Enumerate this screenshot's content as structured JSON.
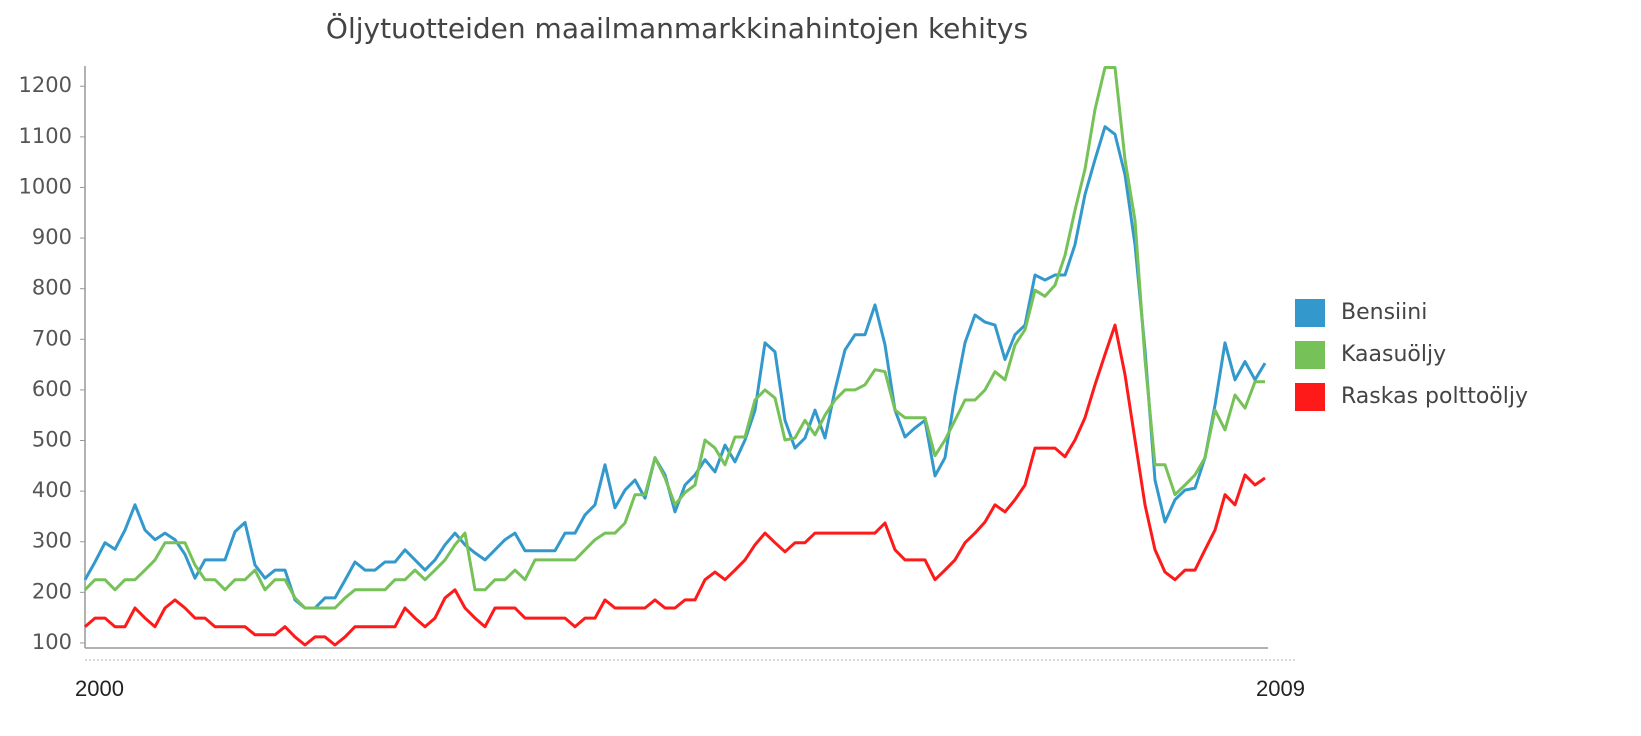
{
  "chart_data": {
    "type": "line",
    "title": "Öljytuotteiden maailmanmarkkinahintojen kehitys",
    "categories": [
      "2000",
      null,
      null,
      null,
      null,
      null,
      null,
      null,
      null,
      null,
      null,
      null,
      null,
      null,
      null,
      null,
      null,
      null,
      null,
      null,
      null,
      null,
      null,
      null,
      null,
      null,
      null,
      null,
      null,
      null,
      null,
      null,
      null,
      null,
      null,
      null,
      null,
      null,
      null,
      null,
      null,
      null,
      null,
      null,
      null,
      null,
      null,
      null,
      null,
      null,
      null,
      null,
      null,
      null,
      null,
      null,
      null,
      null,
      null,
      null,
      null,
      null,
      null,
      null,
      null,
      null,
      null,
      null,
      null,
      null,
      null,
      null,
      null,
      null,
      null,
      null,
      null,
      null,
      null,
      null,
      null,
      null,
      null,
      null,
      null,
      null,
      null,
      null,
      null,
      null,
      null,
      null,
      null,
      null,
      null,
      null,
      null,
      null,
      null,
      null,
      null,
      null,
      null,
      null,
      null,
      null,
      null,
      null,
      null,
      null,
      null,
      null,
      null,
      null,
      null,
      null,
      null,
      null,
      "2009"
    ],
    "series": [
      {
        "name": "Bensiini",
        "color": "#3399cc",
        "values": [
          225,
          260,
          298,
          285,
          323,
          373,
          323,
          304,
          317,
          304,
          275,
          228,
          264,
          264,
          264,
          320,
          338,
          254,
          228,
          244,
          244,
          185,
          169,
          169,
          189,
          189,
          224,
          260,
          244,
          244,
          260,
          260,
          284,
          264,
          244,
          264,
          294,
          317,
          294,
          278,
          264,
          284,
          304,
          317,
          282,
          282,
          282,
          282,
          317,
          317,
          353,
          373,
          452,
          367,
          402,
          422,
          386,
          466,
          432,
          359,
          412,
          432,
          462,
          438,
          491,
          458,
          501,
          560,
          693,
          675,
          540,
          485,
          505,
          560,
          505,
          600,
          679,
          709,
          709,
          768,
          689,
          560,
          507,
          525,
          540,
          430,
          466,
          590,
          693,
          748,
          734,
          728,
          660,
          709,
          728,
          827,
          817,
          827,
          827,
          887,
          986,
          1055,
          1120,
          1105,
          1025,
          887,
          679,
          422,
          339,
          383,
          402,
          406,
          466,
          570,
          693,
          620,
          656,
          620,
          653
        ]
      },
      {
        "name": "Kaasuöljy",
        "color": "#77c159",
        "values": [
          205,
          225,
          225,
          205,
          225,
          225,
          244,
          264,
          298,
          298,
          298,
          254,
          225,
          225,
          205,
          225,
          225,
          244,
          205,
          225,
          225,
          189,
          169,
          169,
          169,
          169,
          189,
          205,
          205,
          205,
          205,
          225,
          225,
          244,
          225,
          244,
          264,
          294,
          317,
          205,
          205,
          225,
          225,
          244,
          225,
          264,
          264,
          264,
          264,
          264,
          284,
          304,
          317,
          317,
          337,
          393,
          393,
          466,
          426,
          373,
          397,
          412,
          501,
          485,
          452,
          507,
          507,
          580,
          600,
          584,
          501,
          505,
          540,
          511,
          550,
          580,
          600,
          600,
          610,
          640,
          636,
          560,
          545,
          545,
          545,
          470,
          501,
          540,
          580,
          580,
          600,
          636,
          620,
          689,
          719,
          797,
          785,
          807,
          866,
          955,
          1036,
          1154,
          1237,
          1237,
          1055,
          935,
          660,
          452,
          452,
          393,
          412,
          432,
          466,
          560,
          521,
          590,
          564,
          616,
          616
        ]
      },
      {
        "name": "Raskas polttoöljy",
        "color": "#ff1a1a",
        "values": [
          132,
          149,
          149,
          132,
          132,
          169,
          149,
          132,
          169,
          185,
          169,
          149,
          149,
          132,
          132,
          132,
          132,
          116,
          116,
          116,
          132,
          112,
          96,
          112,
          112,
          96,
          112,
          132,
          132,
          132,
          132,
          132,
          169,
          149,
          132,
          149,
          189,
          205,
          169,
          149,
          132,
          169,
          169,
          169,
          149,
          149,
          149,
          149,
          149,
          132,
          149,
          149,
          185,
          169,
          169,
          169,
          169,
          185,
          169,
          169,
          185,
          185,
          225,
          240,
          225,
          244,
          264,
          294,
          317,
          298,
          280,
          298,
          298,
          317,
          317,
          317,
          317,
          317,
          317,
          317,
          337,
          284,
          264,
          264,
          264,
          225,
          244,
          264,
          298,
          317,
          339,
          373,
          359,
          383,
          412,
          485,
          485,
          485,
          468,
          501,
          545,
          610,
          670,
          728,
          630,
          501,
          373,
          284,
          240,
          225,
          244,
          244,
          284,
          323,
          393,
          373,
          432,
          412,
          426
        ]
      }
    ],
    "ylim": [
      90,
      1240
    ],
    "yticks": [
      100,
      200,
      300,
      400,
      500,
      600,
      700,
      800,
      900,
      1000,
      1100,
      1200
    ],
    "grid": false,
    "legend": "right"
  }
}
